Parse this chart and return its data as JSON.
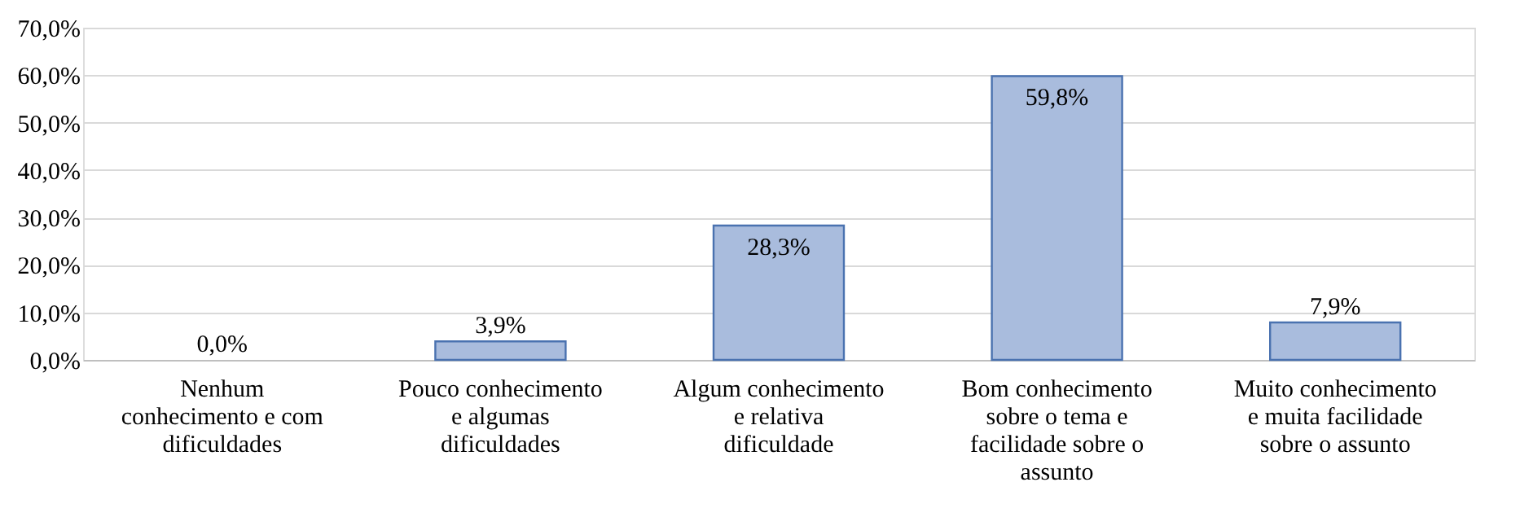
{
  "chart_data": {
    "type": "bar",
    "categories": [
      "Nenhum conhecimento e com dificuldades",
      "Pouco conhecimento e algumas dificuldades",
      "Algum conhecimento e relativa dificuldade",
      "Bom conhecimento sobre o tema e facilidade sobre o assunto",
      "Muito conhecimento e muita facilidade sobre o assunto"
    ],
    "values": [
      0.0,
      3.9,
      28.3,
      59.8,
      7.9
    ],
    "value_labels": [
      "0,0%",
      "3,9%",
      "28,3%",
      "59,8%",
      "7,9%"
    ],
    "color": "#a9bcdd",
    "ylim": [
      0,
      70
    ],
    "yticks": [
      {
        "value": 0,
        "label": "0,0%"
      },
      {
        "value": 10,
        "label": "10,0%"
      },
      {
        "value": 20,
        "label": "20,0%"
      },
      {
        "value": 30,
        "label": "30,0%"
      },
      {
        "value": 40,
        "label": "40,0%"
      },
      {
        "value": 50,
        "label": "50,0%"
      },
      {
        "value": 60,
        "label": "60,0%"
      },
      {
        "value": 70,
        "label": "70,0%"
      }
    ],
    "grid": "y"
  }
}
